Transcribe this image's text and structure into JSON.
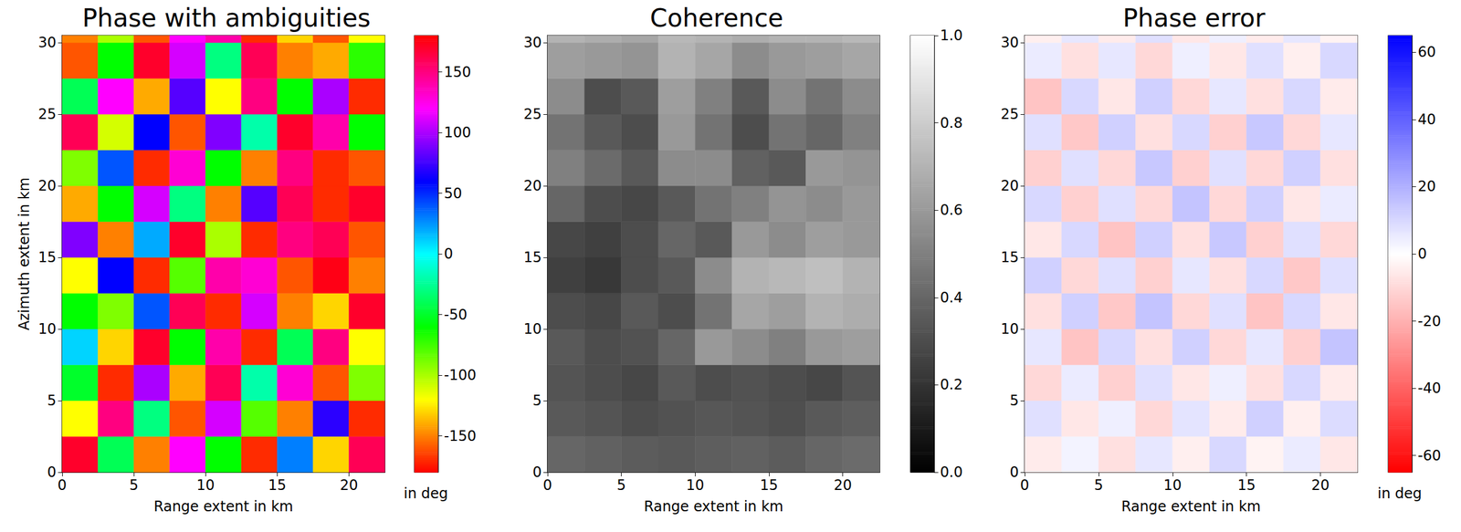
{
  "chart_data": [
    {
      "type": "heatmap",
      "title": "Phase with ambiguities",
      "x_label": "Range extent in km",
      "y_label": "Azimuth extent in km",
      "color": "hsv",
      "xlim": [
        0,
        22.5
      ],
      "ylim": [
        0,
        30.5
      ],
      "xticks": [
        0,
        5,
        10,
        15,
        20
      ],
      "yticks": [
        0,
        5,
        10,
        15,
        20,
        25,
        30
      ],
      "x": [
        1.25,
        3.75,
        6.25,
        8.75,
        11.25,
        13.75,
        16.25,
        18.75,
        21.25
      ],
      "y": [
        1.25,
        3.75,
        6.25,
        8.75,
        11.25,
        13.75,
        16.25,
        18.75,
        21.25,
        23.75,
        26.25,
        28.75,
        31.25
      ],
      "values": [
        [
          170,
          -40,
          -150,
          120,
          -60,
          -170,
          30,
          -130,
          160
        ],
        [
          -120,
          150,
          -30,
          -160,
          110,
          -80,
          -150,
          70,
          -170
        ],
        [
          -50,
          -170,
          100,
          -140,
          160,
          -20,
          130,
          -160,
          -90
        ],
        [
          10,
          -130,
          170,
          -60,
          140,
          -170,
          -40,
          150,
          -120
        ],
        [
          -60,
          -90,
          40,
          160,
          -170,
          110,
          -150,
          -130,
          170
        ],
        [
          -120,
          60,
          -170,
          -80,
          140,
          130,
          -160,
          175,
          -150
        ],
        [
          90,
          -150,
          20,
          170,
          -100,
          -170,
          150,
          160,
          -160
        ],
        [
          -140,
          -60,
          110,
          -30,
          -150,
          80,
          160,
          -170,
          170
        ],
        [
          -90,
          40,
          -170,
          130,
          -60,
          -150,
          150,
          -170,
          -160
        ],
        [
          160,
          -110,
          60,
          -160,
          90,
          -20,
          170,
          140,
          -60
        ],
        [
          -40,
          120,
          -140,
          80,
          -120,
          150,
          -60,
          100,
          -170
        ],
        [
          -160,
          -60,
          170,
          110,
          -30,
          160,
          -150,
          -140,
          -70
        ],
        [
          -150,
          -100,
          -160,
          120,
          140,
          -170,
          -130,
          -160,
          -120
        ]
      ],
      "colorbar": {
        "range": [
          -180,
          180
        ],
        "ticks": [
          -150,
          -100,
          -50,
          0,
          50,
          100,
          150
        ],
        "label": "in deg"
      }
    },
    {
      "type": "heatmap",
      "title": "Coherence",
      "x_label": "Range extent in km",
      "color": "gray",
      "xlim": [
        0,
        22.5
      ],
      "ylim": [
        0,
        30.5
      ],
      "xticks": [
        0,
        5,
        10,
        15,
        20
      ],
      "yticks": [
        0,
        5,
        10,
        15,
        20,
        25,
        30
      ],
      "x": [
        1.25,
        3.75,
        6.25,
        8.75,
        11.25,
        13.75,
        16.25,
        18.75,
        21.25
      ],
      "y": [
        1.25,
        3.75,
        6.25,
        8.75,
        11.25,
        13.75,
        16.25,
        18.75,
        21.25,
        23.75,
        26.25,
        28.75,
        31.25
      ],
      "values": [
        [
          0.4,
          0.38,
          0.36,
          0.35,
          0.37,
          0.38,
          0.36,
          0.4,
          0.42
        ],
        [
          0.35,
          0.33,
          0.3,
          0.32,
          0.34,
          0.33,
          0.31,
          0.35,
          0.37
        ],
        [
          0.33,
          0.3,
          0.28,
          0.35,
          0.3,
          0.32,
          0.3,
          0.28,
          0.33
        ],
        [
          0.35,
          0.3,
          0.32,
          0.4,
          0.6,
          0.55,
          0.5,
          0.6,
          0.62
        ],
        [
          0.3,
          0.28,
          0.35,
          0.3,
          0.45,
          0.65,
          0.62,
          0.7,
          0.68
        ],
        [
          0.25,
          0.22,
          0.3,
          0.35,
          0.55,
          0.7,
          0.72,
          0.75,
          0.7
        ],
        [
          0.28,
          0.25,
          0.3,
          0.4,
          0.35,
          0.6,
          0.55,
          0.62,
          0.6
        ],
        [
          0.4,
          0.3,
          0.28,
          0.35,
          0.45,
          0.5,
          0.58,
          0.55,
          0.6
        ],
        [
          0.5,
          0.42,
          0.35,
          0.55,
          0.55,
          0.38,
          0.35,
          0.6,
          0.58
        ],
        [
          0.45,
          0.35,
          0.3,
          0.6,
          0.45,
          0.3,
          0.45,
          0.4,
          0.5
        ],
        [
          0.55,
          0.3,
          0.35,
          0.62,
          0.5,
          0.35,
          0.55,
          0.45,
          0.55
        ],
        [
          0.62,
          0.6,
          0.58,
          0.7,
          0.65,
          0.55,
          0.6,
          0.62,
          0.65
        ],
        [
          0.7,
          0.68,
          0.65,
          0.72,
          0.7,
          0.68,
          0.7,
          0.7,
          0.72
        ]
      ],
      "colorbar": {
        "range": [
          0,
          1
        ],
        "ticks": [
          {
            "value": 0,
            "label": "0.0"
          },
          {
            "value": 0.2,
            "label": "0.2"
          },
          {
            "value": 0.4,
            "label": "0.4"
          },
          {
            "value": 0.6,
            "label": "0.6"
          },
          {
            "value": 0.8,
            "label": "0.8"
          },
          {
            "value": 1,
            "label": "1.0"
          }
        ]
      }
    },
    {
      "type": "heatmap",
      "title": "Phase error",
      "x_label": "Range extent in km",
      "color": "bwr_r",
      "xlim": [
        0,
        22.5
      ],
      "ylim": [
        0,
        30.5
      ],
      "xticks": [
        0,
        5,
        10,
        15,
        20
      ],
      "yticks": [
        0,
        5,
        10,
        15,
        20,
        25,
        30
      ],
      "x": [
        1.25,
        3.75,
        6.25,
        8.75,
        11.25,
        13.75,
        16.25,
        18.75,
        21.25
      ],
      "y": [
        1.25,
        3.75,
        6.25,
        8.75,
        11.25,
        13.75,
        16.25,
        18.75,
        21.25,
        23.75,
        26.25,
        28.75,
        31.25
      ],
      "values": [
        [
          -5,
          3,
          -8,
          6,
          -4,
          10,
          -3,
          5,
          -6
        ],
        [
          8,
          -6,
          4,
          -10,
          7,
          -5,
          12,
          -4,
          9
        ],
        [
          -10,
          5,
          -12,
          8,
          -6,
          4,
          -8,
          10,
          -5
        ],
        [
          6,
          -15,
          10,
          -8,
          12,
          -10,
          6,
          -12,
          15
        ],
        [
          -8,
          12,
          -14,
          15,
          -10,
          8,
          -15,
          10,
          -6
        ],
        [
          12,
          -10,
          8,
          -12,
          6,
          -8,
          10,
          -14,
          8
        ],
        [
          -6,
          10,
          -15,
          12,
          -8,
          14,
          -12,
          8,
          -10
        ],
        [
          10,
          -12,
          8,
          -10,
          15,
          -10,
          12,
          -6,
          5
        ],
        [
          -12,
          8,
          -10,
          14,
          -12,
          8,
          -10,
          12,
          -8
        ],
        [
          8,
          -14,
          12,
          -8,
          10,
          -12,
          14,
          -10,
          6
        ],
        [
          -15,
          10,
          -6,
          12,
          -10,
          6,
          -8,
          10,
          -5
        ],
        [
          5,
          -8,
          6,
          -10,
          4,
          -6,
          8,
          -4,
          10
        ],
        [
          -4,
          6,
          -5,
          8,
          -6,
          4,
          -5,
          6,
          -3
        ]
      ],
      "colorbar": {
        "range": [
          -65,
          65
        ],
        "ticks": [
          -60,
          -40,
          -20,
          0,
          20,
          40,
          60
        ],
        "label": "in deg"
      }
    }
  ]
}
